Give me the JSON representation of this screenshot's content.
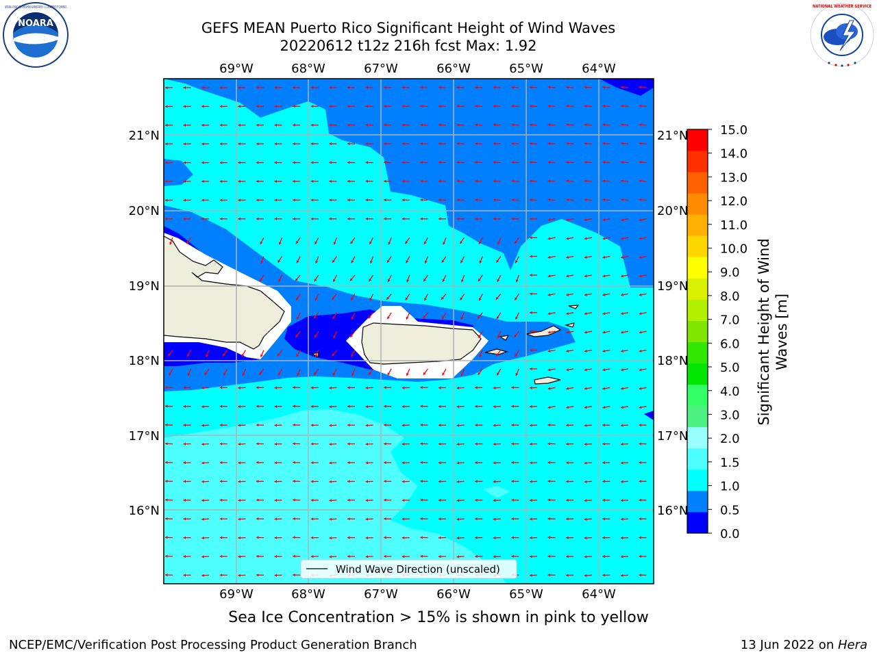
{
  "header": {
    "title_line1": "GEFS MEAN Puerto Rico Significant Height of Wind Waves",
    "title_line2": "20220612 t12z 216h fcst   Max: 1.92"
  },
  "logos": {
    "left": {
      "name": "NOARA",
      "ring_text": "NATIONAL OCEANIC AND ATMOSPHERIC ADMINISTRATION · U.S. DEPARTMENT OF COMMERCE"
    },
    "right": {
      "ring_text": "NATIONAL WEATHER SERVICE"
    }
  },
  "map": {
    "lon_labels": [
      "69°W",
      "68°W",
      "67°W",
      "66°W",
      "65°W",
      "64°W"
    ],
    "lat_labels": [
      "21°N",
      "20°N",
      "19°N",
      "18°N",
      "17°N",
      "16°N"
    ],
    "legend_label": "Wind Wave Direction (unscaled)",
    "colors": {
      "land": "#efeedd",
      "lt0_5": "#0000ff",
      "lt1_0": "#0080ff",
      "lt1_5": "#00ffff",
      "lt2_0": "#4dffff",
      "arrow": "#ff0000",
      "grid": "#b0b0b0"
    }
  },
  "colorbar": {
    "ticks": [
      "15.0",
      "14.0",
      "13.0",
      "12.0",
      "11.0",
      "10.0",
      "9.0",
      "8.0",
      "7.0",
      "6.0",
      "5.0",
      "4.0",
      "3.0",
      "2.0",
      "1.5",
      "1.0",
      "0.5",
      "0.0"
    ],
    "colors": [
      "#0000ff",
      "#0080ff",
      "#00ffff",
      "#4dffff",
      "#99ffff",
      "#4cf080",
      "#33ff66",
      "#00e600",
      "#33e600",
      "#80e600",
      "#b3f000",
      "#d9f000",
      "#ffff00",
      "#ffd700",
      "#ffb000",
      "#ff8c00",
      "#ff6000",
      "#ff3000",
      "#ff0000"
    ],
    "label_line1": "Significant Height of Wind",
    "label_line2": "Waves [m]"
  },
  "notes": {
    "sea_ice": "Sea Ice Concentration > 15% is shown in pink to yellow"
  },
  "footer": {
    "left": "NCEP/EMC/Verification Post Processing Product Generation Branch",
    "right_prefix": "13 Jun 2022 on ",
    "right_host": "Hera"
  }
}
